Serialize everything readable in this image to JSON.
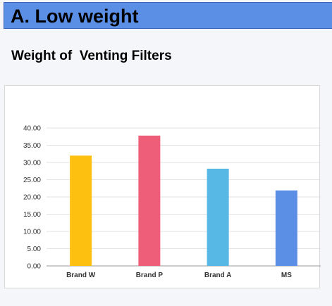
{
  "banner": {
    "title": "A. Low weight"
  },
  "chart_data": {
    "type": "bar",
    "title": "Weight of  Venting Filters",
    "categories": [
      "Brand W",
      "Brand P",
      "Brand A",
      "MS"
    ],
    "values": [
      32.0,
      37.8,
      28.2,
      21.9
    ],
    "colors": [
      "#fdc010",
      "#ef5e78",
      "#57b7e5",
      "#5b8fe6"
    ],
    "ylim": [
      0,
      40
    ],
    "yticks": [
      "0.00",
      "5.00",
      "10.00",
      "15.00",
      "20.00",
      "25.00",
      "30.00",
      "35.00",
      "40.00"
    ],
    "grid": true,
    "xlabel": "",
    "ylabel": ""
  }
}
